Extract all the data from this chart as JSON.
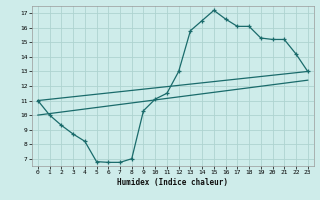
{
  "xlabel": "Humidex (Indice chaleur)",
  "bg_color": "#ceecea",
  "grid_color": "#aed4d0",
  "line_color": "#1a6b6b",
  "xlim": [
    -0.5,
    23.5
  ],
  "ylim": [
    6.5,
    17.5
  ],
  "xticks": [
    0,
    1,
    2,
    3,
    4,
    5,
    6,
    7,
    8,
    9,
    10,
    11,
    12,
    13,
    14,
    15,
    16,
    17,
    18,
    19,
    20,
    21,
    22,
    23
  ],
  "yticks": [
    7,
    8,
    9,
    10,
    11,
    12,
    13,
    14,
    15,
    16,
    17
  ],
  "curve1_x": [
    0,
    1,
    2,
    3,
    4,
    5,
    6,
    7,
    8,
    9,
    10,
    11,
    12,
    13,
    14,
    15,
    16,
    17,
    18,
    19,
    20,
    21,
    22,
    23
  ],
  "curve1_y": [
    11,
    10,
    9.3,
    8.7,
    8.2,
    6.8,
    6.75,
    6.75,
    7.0,
    10.3,
    11.1,
    11.5,
    13.0,
    15.8,
    16.5,
    17.2,
    16.6,
    16.1,
    16.1,
    15.3,
    15.2,
    15.2,
    14.2,
    13.0
  ],
  "line2_x": [
    0,
    23
  ],
  "line2_y": [
    11.0,
    13.0
  ],
  "line3_x": [
    0,
    23
  ],
  "line3_y": [
    10.0,
    12.4
  ]
}
